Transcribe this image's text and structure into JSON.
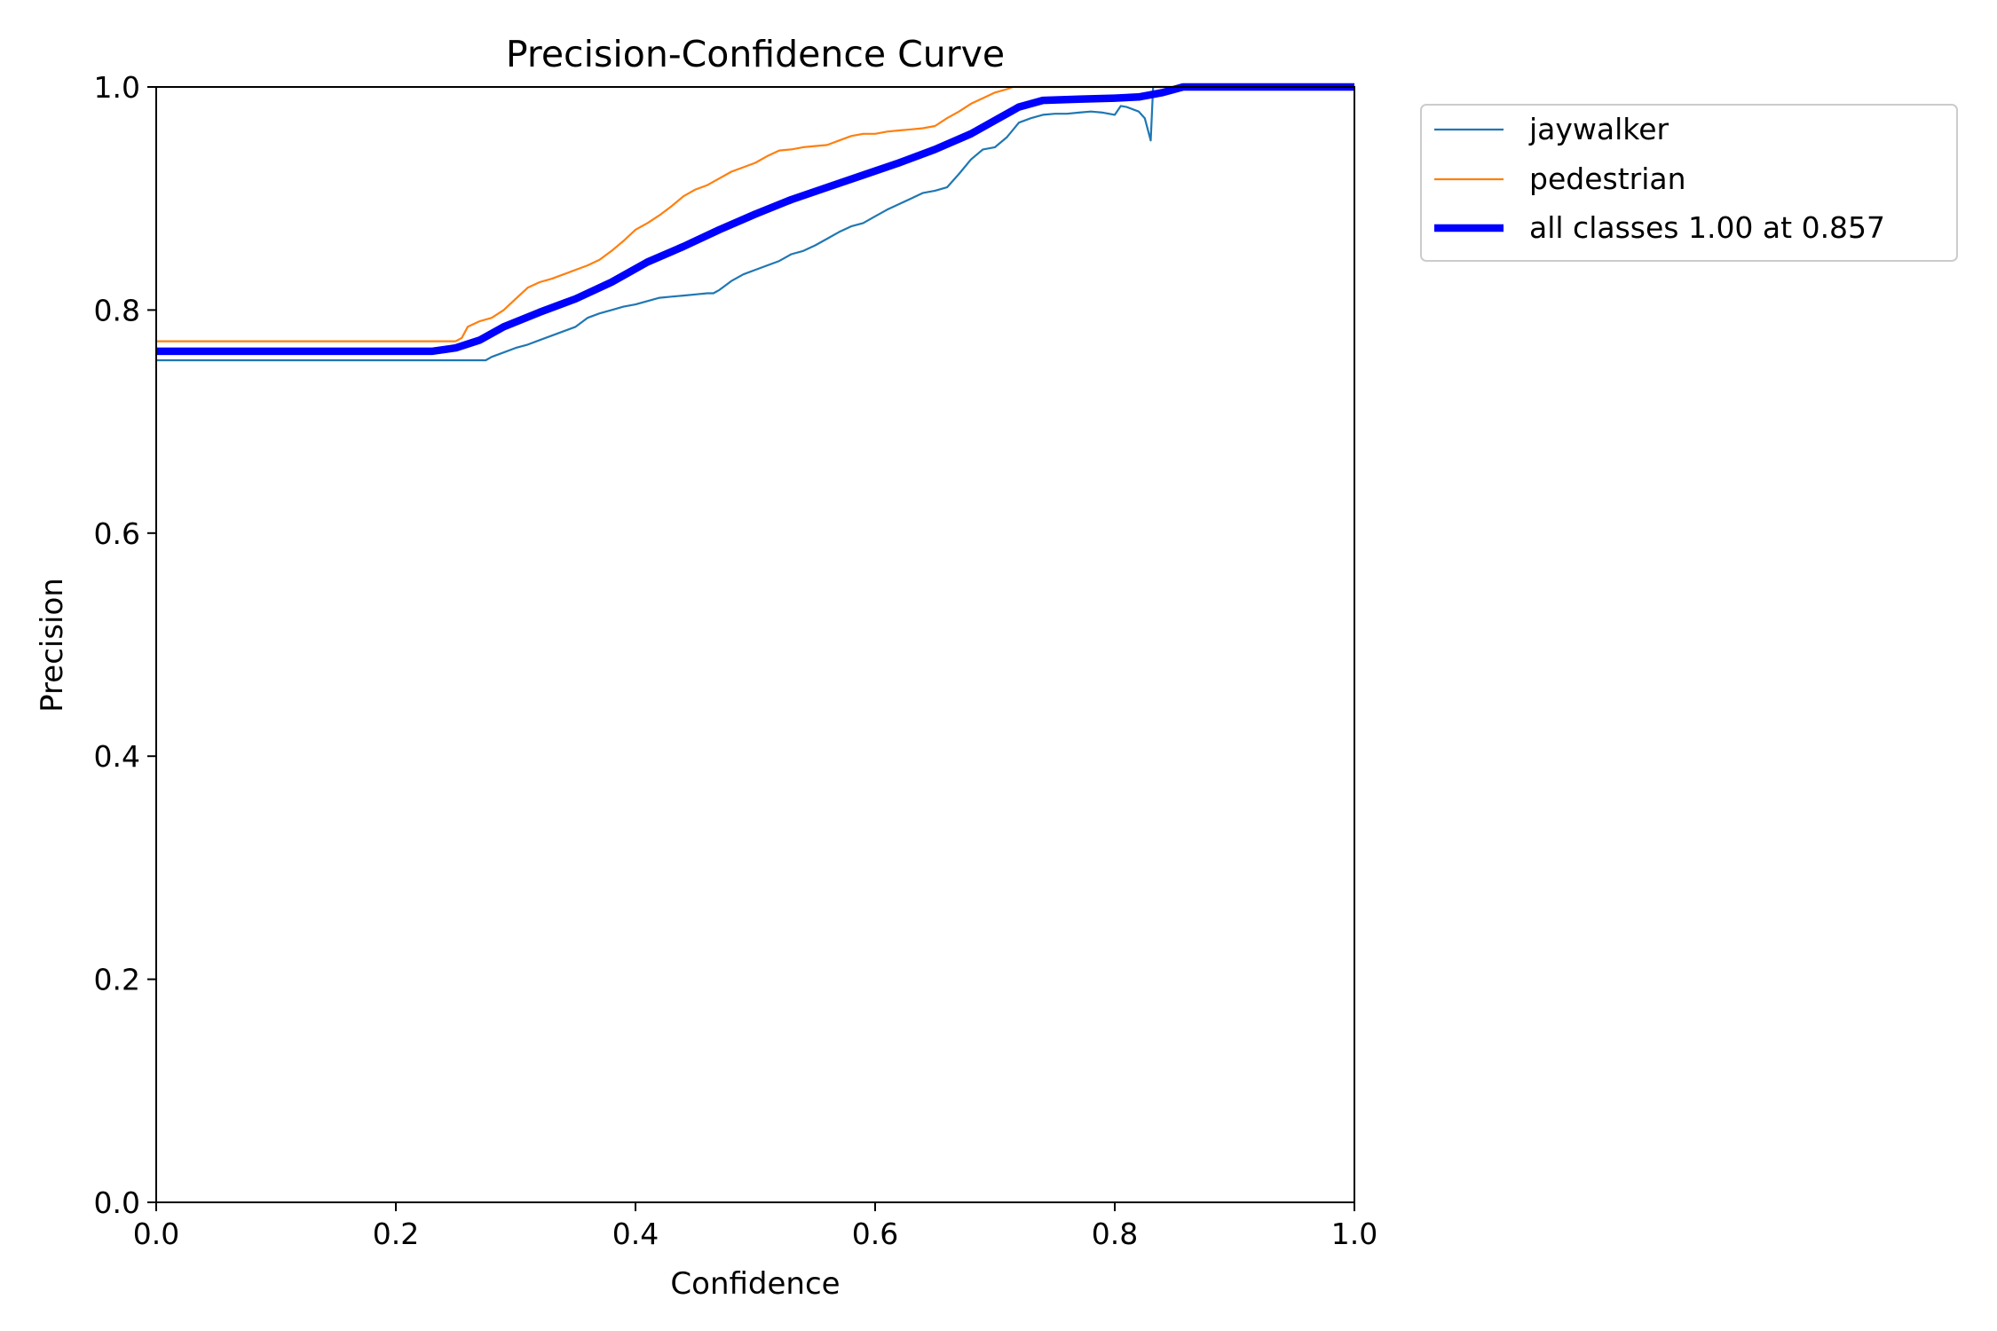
{
  "chart_data": {
    "type": "line",
    "title": "Precision-Confidence Curve",
    "xlabel": "Confidence",
    "ylabel": "Precision",
    "xlim": [
      0,
      1
    ],
    "ylim": [
      0,
      1
    ],
    "xticks": [
      "0.0",
      "0.2",
      "0.4",
      "0.6",
      "0.8",
      "1.0"
    ],
    "yticks": [
      "0.0",
      "0.2",
      "0.4",
      "0.6",
      "0.8",
      "1.0"
    ],
    "grid": false,
    "legend_position": "outside-top-right",
    "series": [
      {
        "name": "jaywalker",
        "color": "#1f77b4",
        "x": [
          0,
          0.27,
          0.275,
          0.28,
          0.29,
          0.3,
          0.31,
          0.32,
          0.33,
          0.34,
          0.35,
          0.36,
          0.37,
          0.38,
          0.39,
          0.4,
          0.41,
          0.42,
          0.43,
          0.44,
          0.45,
          0.46,
          0.465,
          0.47,
          0.48,
          0.49,
          0.5,
          0.51,
          0.52,
          0.53,
          0.54,
          0.55,
          0.56,
          0.57,
          0.58,
          0.59,
          0.6,
          0.61,
          0.62,
          0.63,
          0.64,
          0.65,
          0.66,
          0.67,
          0.68,
          0.69,
          0.7,
          0.71,
          0.72,
          0.73,
          0.74,
          0.75,
          0.76,
          0.77,
          0.78,
          0.79,
          0.8,
          0.805,
          0.81,
          0.82,
          0.825,
          0.83,
          0.832,
          0.84,
          0.85,
          0.86,
          0.9,
          1.0
        ],
        "y": [
          0.755,
          0.755,
          0.755,
          0.758,
          0.762,
          0.766,
          0.769,
          0.773,
          0.777,
          0.781,
          0.785,
          0.793,
          0.797,
          0.8,
          0.803,
          0.805,
          0.808,
          0.811,
          0.812,
          0.813,
          0.814,
          0.815,
          0.815,
          0.818,
          0.826,
          0.832,
          0.836,
          0.84,
          0.844,
          0.85,
          0.853,
          0.858,
          0.864,
          0.87,
          0.875,
          0.878,
          0.884,
          0.89,
          0.895,
          0.9,
          0.905,
          0.907,
          0.91,
          0.922,
          0.935,
          0.944,
          0.946,
          0.955,
          0.968,
          0.972,
          0.975,
          0.976,
          0.976,
          0.977,
          0.978,
          0.977,
          0.975,
          0.983,
          0.982,
          0.978,
          0.972,
          0.952,
          1.0,
          1.0,
          1.0,
          1.0,
          1.0,
          1.0
        ]
      },
      {
        "name": "pedestrian",
        "color": "#ff7f0e",
        "x": [
          0,
          0.25,
          0.255,
          0.26,
          0.27,
          0.28,
          0.29,
          0.3,
          0.31,
          0.32,
          0.33,
          0.34,
          0.35,
          0.36,
          0.37,
          0.38,
          0.39,
          0.4,
          0.41,
          0.42,
          0.43,
          0.44,
          0.45,
          0.46,
          0.47,
          0.48,
          0.49,
          0.5,
          0.51,
          0.52,
          0.53,
          0.54,
          0.55,
          0.56,
          0.57,
          0.58,
          0.59,
          0.6,
          0.61,
          0.62,
          0.63,
          0.64,
          0.65,
          0.66,
          0.67,
          0.68,
          0.69,
          0.7,
          0.71,
          0.715,
          0.72,
          1.0
        ],
        "y": [
          0.772,
          0.772,
          0.775,
          0.785,
          0.79,
          0.793,
          0.8,
          0.81,
          0.82,
          0.825,
          0.828,
          0.832,
          0.836,
          0.84,
          0.845,
          0.853,
          0.862,
          0.872,
          0.878,
          0.885,
          0.893,
          0.902,
          0.908,
          0.912,
          0.918,
          0.924,
          0.928,
          0.932,
          0.938,
          0.943,
          0.944,
          0.946,
          0.947,
          0.948,
          0.952,
          0.956,
          0.958,
          0.958,
          0.96,
          0.961,
          0.962,
          0.963,
          0.965,
          0.972,
          0.978,
          0.985,
          0.99,
          0.995,
          0.998,
          1.0,
          1.0,
          1.0
        ]
      },
      {
        "name": "all classes 1.00 at 0.857",
        "color": "#0000ff",
        "x": [
          0,
          0.23,
          0.25,
          0.27,
          0.29,
          0.32,
          0.35,
          0.38,
          0.41,
          0.44,
          0.47,
          0.5,
          0.53,
          0.56,
          0.59,
          0.62,
          0.65,
          0.68,
          0.7,
          0.72,
          0.74,
          0.77,
          0.8,
          0.82,
          0.84,
          0.857,
          1.0
        ],
        "y": [
          0.763,
          0.763,
          0.766,
          0.773,
          0.785,
          0.798,
          0.81,
          0.825,
          0.843,
          0.857,
          0.872,
          0.886,
          0.899,
          0.91,
          0.921,
          0.932,
          0.944,
          0.958,
          0.97,
          0.982,
          0.988,
          0.989,
          0.99,
          0.991,
          0.995,
          1.0,
          1.0
        ]
      }
    ]
  }
}
